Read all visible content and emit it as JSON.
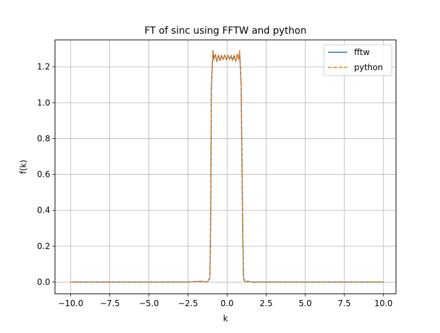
{
  "chart_data": {
    "type": "line",
    "title": "FT of sinc using FFTW and python",
    "xlabel": "k",
    "ylabel": "f(k)",
    "xlim": [
      -11.0,
      10.8
    ],
    "ylim": [
      -0.065,
      1.35
    ],
    "xticks": [
      -10.0,
      -7.5,
      -5.0,
      -2.5,
      0.0,
      2.5,
      5.0,
      7.5,
      10.0
    ],
    "xtick_labels": [
      "−10.0",
      "−7.5",
      "−5.0",
      "−2.5",
      "0.0",
      "2.5",
      "5.0",
      "7.5",
      "10.0"
    ],
    "yticks": [
      0.0,
      0.2,
      0.4,
      0.6,
      0.8,
      1.0,
      1.2
    ],
    "ytick_labels": [
      "0.0",
      "0.2",
      "0.4",
      "0.6",
      "0.8",
      "1.0",
      "1.2"
    ],
    "grid": true,
    "legend_position": "top-right",
    "series": [
      {
        "name": "fftw",
        "style": "solid",
        "color": "#1f77b4",
        "x": [
          -10.0,
          -2.5,
          -1.6,
          -1.3,
          -1.2,
          -1.1,
          -1.05,
          -1.0,
          -0.9,
          -0.85,
          -0.75,
          -0.65,
          -0.55,
          -0.45,
          -0.35,
          -0.25,
          -0.15,
          -0.05,
          0.05,
          0.15,
          0.25,
          0.35,
          0.45,
          0.55,
          0.65,
          0.75,
          0.8,
          0.9,
          1.0,
          1.05,
          1.1,
          1.2,
          1.3,
          1.6,
          2.5,
          10.0
        ],
        "values": [
          0.0,
          0.0,
          0.005,
          0.0,
          0.008,
          0.025,
          0.3,
          1.1,
          1.29,
          1.24,
          1.27,
          1.23,
          1.265,
          1.235,
          1.265,
          1.24,
          1.265,
          1.24,
          1.265,
          1.24,
          1.265,
          1.235,
          1.265,
          1.23,
          1.27,
          1.24,
          1.29,
          1.1,
          0.3,
          0.025,
          0.008,
          0.0,
          0.005,
          0.0,
          0.0,
          0.0
        ]
      },
      {
        "name": "python",
        "style": "dashed",
        "color": "#ff7f0e",
        "x": [
          -10.0,
          -2.5,
          -1.6,
          -1.3,
          -1.2,
          -1.1,
          -1.05,
          -1.0,
          -0.9,
          -0.85,
          -0.75,
          -0.65,
          -0.55,
          -0.45,
          -0.35,
          -0.25,
          -0.15,
          -0.05,
          0.05,
          0.15,
          0.25,
          0.35,
          0.45,
          0.55,
          0.65,
          0.75,
          0.8,
          0.9,
          1.0,
          1.05,
          1.1,
          1.2,
          1.3,
          1.6,
          2.5,
          10.0
        ],
        "values": [
          0.0,
          0.0,
          0.005,
          0.0,
          0.008,
          0.025,
          0.3,
          1.1,
          1.29,
          1.24,
          1.27,
          1.23,
          1.265,
          1.235,
          1.265,
          1.24,
          1.265,
          1.24,
          1.265,
          1.24,
          1.265,
          1.235,
          1.265,
          1.23,
          1.27,
          1.24,
          1.29,
          1.1,
          0.3,
          0.025,
          0.008,
          0.0,
          0.005,
          0.0,
          0.0,
          0.0
        ]
      }
    ]
  }
}
